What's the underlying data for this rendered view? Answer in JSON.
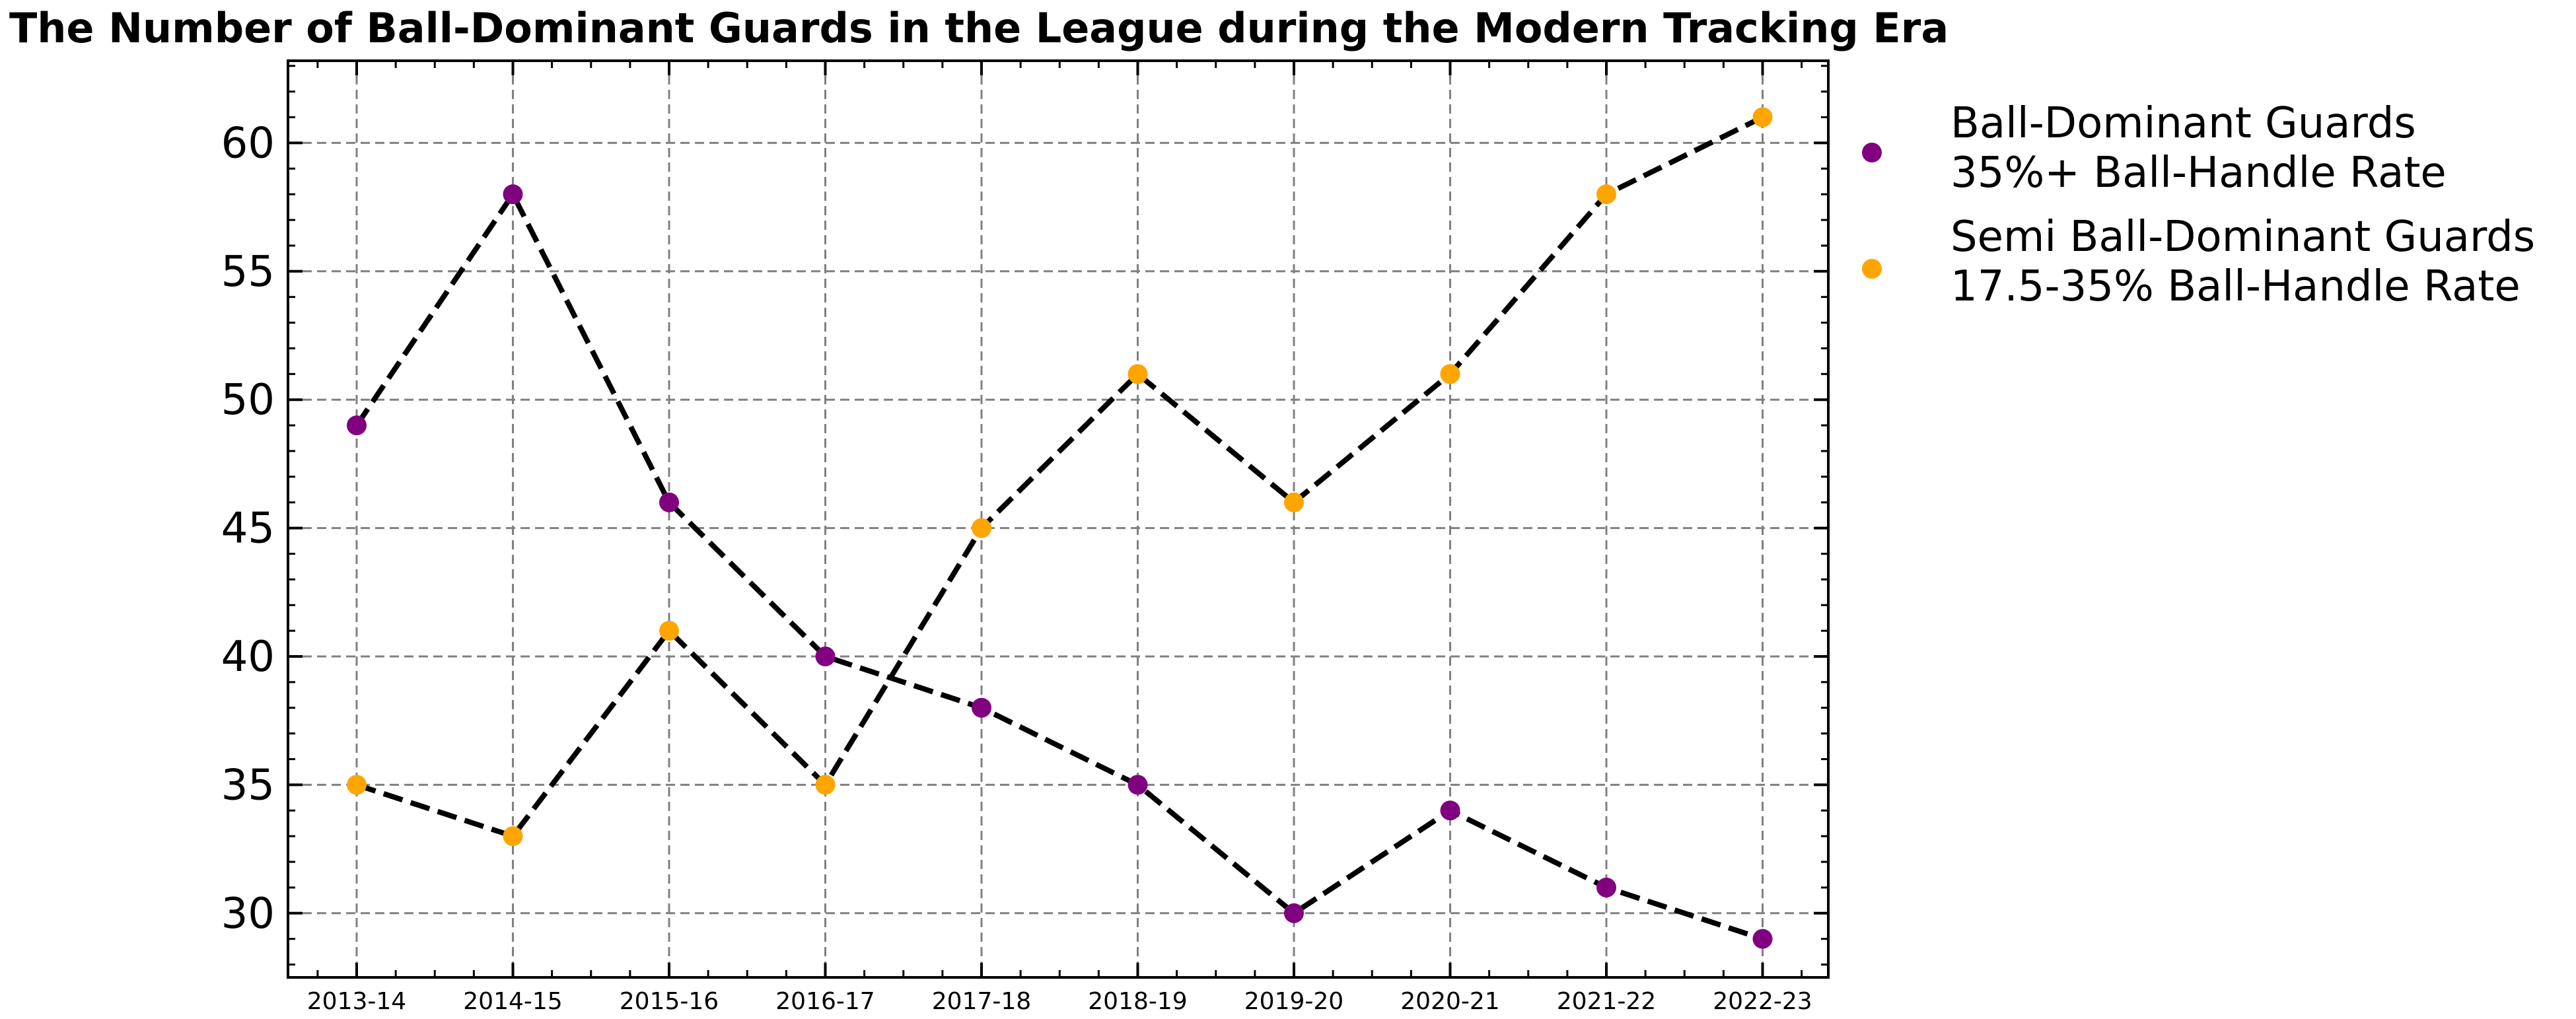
{
  "chart_data": {
    "type": "line",
    "title": "The Number of Ball-Dominant Guards in the League during the Modern Tracking Era",
    "xlabel": "",
    "ylabel": "",
    "categories": [
      "2013-14",
      "2014-15",
      "2015-16",
      "2016-17",
      "2017-18",
      "2018-19",
      "2019-20",
      "2020-21",
      "2021-22",
      "2022-23"
    ],
    "ylim": [
      27.5,
      63.2
    ],
    "yticks": [
      30,
      35,
      40,
      45,
      50,
      55,
      60
    ],
    "grid": true,
    "legend_position": "outside-right",
    "line_style": "dashed",
    "line_color": "#000000",
    "series": [
      {
        "name_lines": [
          "Ball-Dominant Guards",
          "35%+ Ball-Handle Rate"
        ],
        "color": "#800080",
        "values": [
          49,
          58,
          46,
          40,
          38,
          35,
          30,
          34,
          31,
          29
        ]
      },
      {
        "name_lines": [
          "Semi Ball-Dominant Guards",
          "17.5-35% Ball-Handle Rate"
        ],
        "color": "#FFA500",
        "values": [
          35,
          33,
          41,
          35,
          45,
          51,
          46,
          51,
          58,
          61
        ]
      }
    ]
  }
}
